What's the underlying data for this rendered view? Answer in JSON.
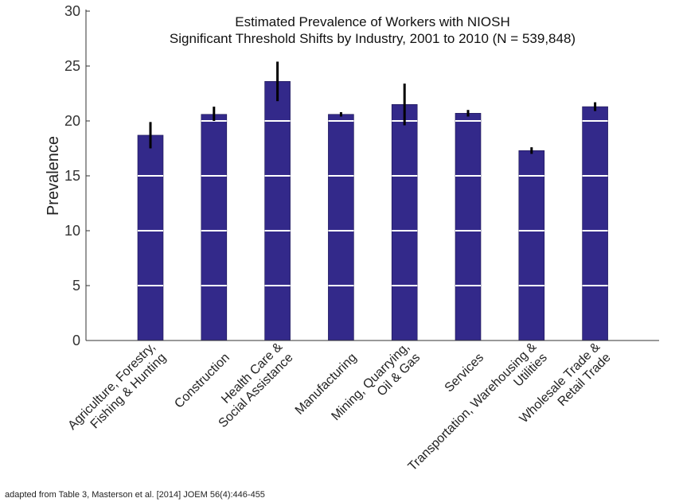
{
  "chart_data": {
    "type": "bar",
    "title_lines": [
      "Estimated Prevalence of Workers with NIOSH",
      "Significant Threshold Shifts by Industry, 2001 to 2010 (N = 539,848)"
    ],
    "xlabel": "",
    "ylabel": "Prevalence",
    "ylim": [
      0,
      30
    ],
    "yticks": [
      0,
      5,
      10,
      15,
      20,
      25,
      30
    ],
    "grid": "white horizontal lines drawn inside bars",
    "categories": [
      [
        "Agriculture, Forestry,",
        "Fishing & Hunting"
      ],
      [
        "Construction"
      ],
      [
        "Health Care &",
        "Social Assistance"
      ],
      [
        "Manufacturing"
      ],
      [
        "Mining, Quarrying,",
        "Oil & Gas"
      ],
      [
        "Services"
      ],
      [
        "Transportation, Warehousing &",
        "Utilities"
      ],
      [
        "Wholesale Trade &",
        "Retail Trade"
      ]
    ],
    "values": [
      18.7,
      20.6,
      23.6,
      20.6,
      21.5,
      20.7,
      17.3,
      21.3
    ],
    "error_low": [
      17.5,
      20.0,
      21.8,
      20.4,
      19.6,
      20.4,
      17.0,
      20.9
    ],
    "error_high": [
      19.9,
      21.3,
      25.4,
      20.8,
      23.4,
      21.0,
      17.6,
      21.7
    ],
    "bar_color": "#33298a",
    "error_color": "#000000",
    "source_note": "adapted from Table 3, Masterson et al. [2014] JOEM 56(4):446-455"
  }
}
